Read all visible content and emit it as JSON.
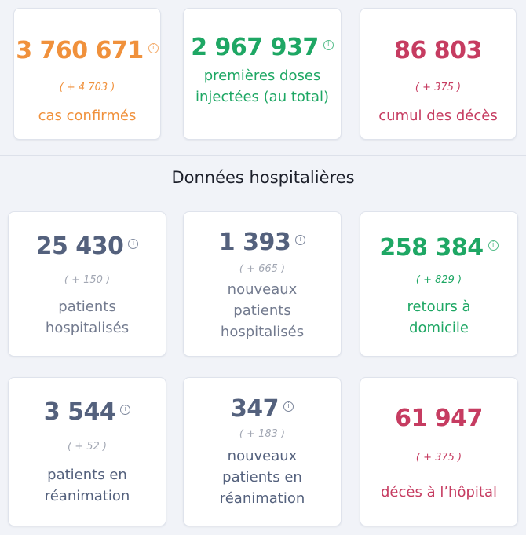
{
  "national": [
    {
      "value": "3 760 671",
      "delta": "( + 4 703 )",
      "label": "cas confirmés"
    },
    {
      "value": "2 967 937",
      "label": "premières doses injectées (au total)"
    },
    {
      "value": "86 803",
      "delta": "( + 375 )",
      "label": "cumul des décès"
    }
  ],
  "hospital": {
    "title": "Données hospitalières",
    "cards": [
      {
        "value": "25 430",
        "delta": "( + 150 )",
        "label": "patients hospitalisés"
      },
      {
        "value": "1 393",
        "delta": "( + 665 )",
        "label": "nouveaux patients hospitalisés"
      },
      {
        "value": "258 384",
        "delta": "( + 829 )",
        "label": "retours à domicile"
      },
      {
        "value": "3 544",
        "delta": "( + 52 )",
        "label": "patients en réanimation"
      },
      {
        "value": "347",
        "delta": "( + 183 )",
        "label": "nouveaux patients en réanimation"
      },
      {
        "value": "61 947",
        "delta": "( + 375 )",
        "label": "décès à l’hôpital"
      }
    ]
  },
  "info_glyph": "i",
  "colors": {
    "orange": "#f0913c",
    "green": "#1ea764",
    "red": "#c63c61",
    "slate": "#54617d",
    "gray": "#737b8f"
  }
}
